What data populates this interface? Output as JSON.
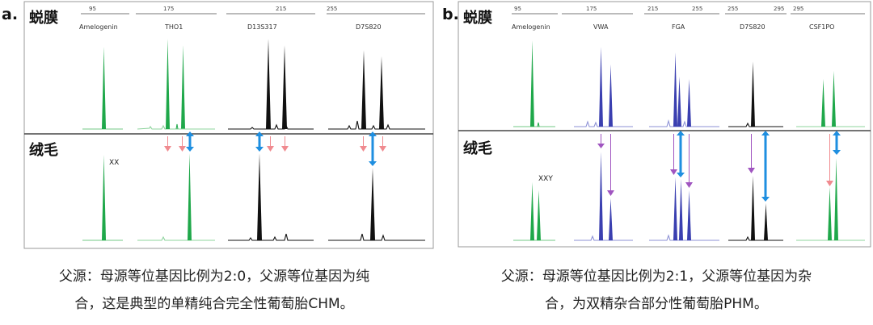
{
  "colors": {
    "green": "#1fa84a",
    "green_pale": "#8fd49e",
    "blue": "#3a3fb0",
    "blue_pale": "#8e92d6",
    "black": "#111111",
    "pink_arrow": "#f08a8f",
    "blue_arrow": "#1f8fe0",
    "purple_arrow": "#a055c0",
    "frame": "#9a9a9a"
  },
  "panel_a": {
    "label": "a.",
    "top_row_label": "蜕膜",
    "bottom_row_label": "绒毛",
    "bottom_annotation": "XX",
    "scale_ticks": [
      "95",
      "175",
      "215",
      "255"
    ],
    "loci": [
      "Amelogenin",
      "THO1",
      "D13S317",
      "D7S820"
    ]
  },
  "panel_b": {
    "label": "b.",
    "top_row_label": "蜕膜",
    "bottom_row_label": "绒毛",
    "bottom_annotation": "XXY",
    "scale_ticks": [
      "95",
      "175",
      "215",
      "255",
      "255",
      "295",
      "295"
    ],
    "loci": [
      "Amelogenin",
      "VWA",
      "FGA",
      "D7S820",
      "CSF1PO"
    ]
  },
  "captions": {
    "a_line1": "父源：母源等位基因比例为2:0，父源等位基因为纯",
    "a_line2": "合，这是典型的单精纯合完全性葡萄胎CHM。",
    "b_line1": "父源：母源等位基因比例为2:1，父源等位基因为杂",
    "b_line2": "合，为双精杂合部分性葡萄胎PHM。"
  }
}
